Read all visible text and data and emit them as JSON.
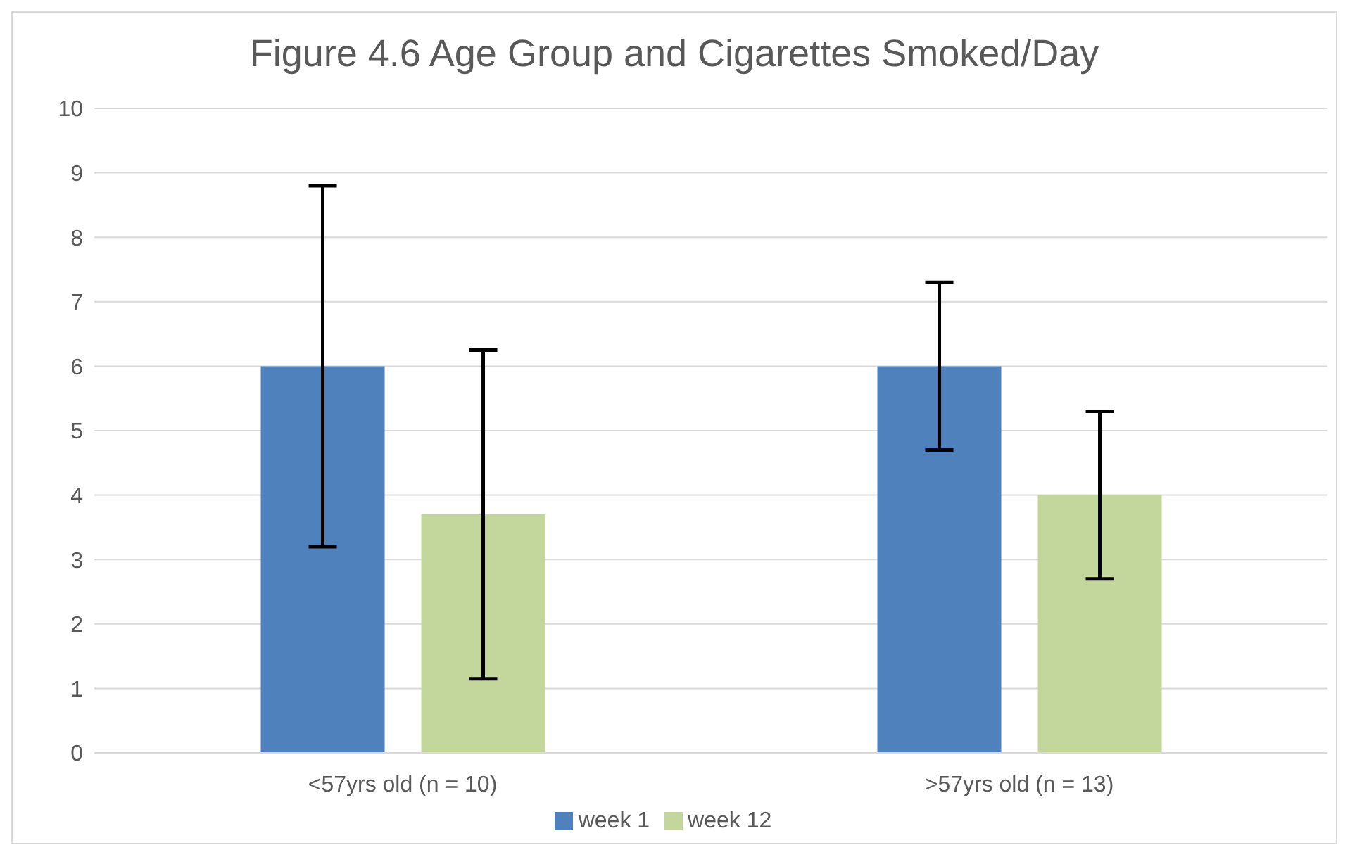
{
  "chart_data": {
    "type": "bar",
    "title": "Figure 4.6 Age Group and Cigarettes Smoked/Day",
    "categories": [
      "<57yrs old (n = 10)",
      ">57yrs old (n = 13)"
    ],
    "series": [
      {
        "name": "week 1",
        "color": "#4f81bd",
        "values": [
          6,
          6
        ],
        "errors": [
          2.8,
          1.3
        ]
      },
      {
        "name": "week 12",
        "color": "#c3d69b",
        "values": [
          3.7,
          4.0
        ],
        "errors": [
          2.55,
          1.3
        ]
      }
    ],
    "ylim": [
      0,
      10
    ],
    "yticks": [
      0,
      1,
      2,
      3,
      4,
      5,
      6,
      7,
      8,
      9,
      10
    ],
    "grid": "y",
    "legend": "bottom"
  }
}
